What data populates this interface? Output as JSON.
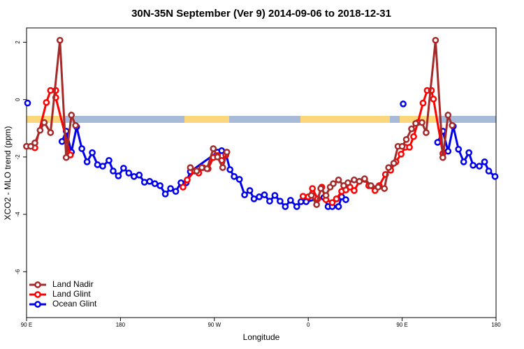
{
  "chart_data": {
    "type": "line",
    "title": "30N-35N September (Ver 9)   2014-09-06 to 2018-12-31",
    "xlabel": "Longitude",
    "ylabel": "XCO2 - MLO trend (ppm)",
    "xlim": [
      90,
      540
    ],
    "xticks": [
      {
        "value": 90,
        "label": "90 E"
      },
      180,
      {
        "value": 270,
        "label": "90 W"
      },
      {
        "value": 360,
        "label": "0"
      },
      {
        "value": 450,
        "label": "90 E"
      },
      {
        "value": 540,
        "label": "180"
      }
    ],
    "ylim": [
      -7.6,
      2.5
    ],
    "yticks": [
      2,
      0,
      -2,
      -4,
      -6
    ],
    "legend": "lower left",
    "series": [
      {
        "name": "Land Nadir",
        "color": "#a52a2a",
        "x": [
          90,
          94,
          98,
          103,
          107,
          113,
          122,
          128,
          133,
          137,
          null,
          247,
          253,
          258,
          263,
          269,
          273,
          278,
          282,
          null,
          363,
          368,
          372,
          377,
          381,
          384,
          389,
          394,
          398,
          404,
          409,
          414,
          420,
          427,
          433,
          437,
          442,
          446,
          450,
          454,
          459,
          463,
          469,
          473,
          482,
          489,
          494,
          498
        ],
        "values": [
          -1.63,
          -1.63,
          -1.51,
          -1.07,
          -0.8,
          -1.15,
          2.07,
          -2.02,
          -0.54,
          -0.9,
          null,
          -2.37,
          -2.49,
          -2.37,
          -2.41,
          -1.71,
          -2.0,
          -2.37,
          -1.83,
          null,
          -3.34,
          -3.66,
          -3.1,
          -3.34,
          -3.05,
          -2.93,
          -2.8,
          -3.0,
          -2.9,
          -2.8,
          -2.85,
          -2.76,
          -3.0,
          -3.05,
          -3.1,
          -2.37,
          -2.22,
          -1.63,
          -1.63,
          -1.39,
          -1.02,
          -0.83,
          -0.8,
          -1.15,
          2.07,
          -2.02,
          -0.54,
          -0.9
        ]
      },
      {
        "name": "Land Glint",
        "color": "#ff0000",
        "x": [
          90,
          98,
          109,
          113,
          118,
          118,
          132,
          null,
          240,
          244,
          251,
          255,
          259,
          264,
          269,
          273,
          277,
          281,
          null,
          355,
          360,
          364,
          369,
          373,
          377,
          383,
          387,
          392,
          396,
          400,
          404,
          409,
          414,
          418,
          424,
          428,
          434,
          439,
          444,
          449,
          453,
          457,
          461,
          465,
          470,
          474,
          478,
          480,
          489
        ],
        "values": [
          -1.63,
          -1.68,
          -0.1,
          0.32,
          0.32,
          0.07,
          -1.93,
          null,
          -3.05,
          -2.8,
          -2.49,
          -2.56,
          -2.37,
          -2.41,
          -2.02,
          -1.95,
          -2.12,
          -1.93,
          null,
          -3.37,
          -3.39,
          -3.1,
          -3.46,
          -3.05,
          -3.49,
          -3.59,
          -3.46,
          -3.2,
          -3.15,
          -3.05,
          -3.17,
          -2.85,
          -2.78,
          -3.0,
          -3.17,
          -3.0,
          -2.61,
          -2.46,
          -2.17,
          -1.9,
          -1.66,
          -1.66,
          -1.29,
          -0.8,
          -0.12,
          0.32,
          0.32,
          0.02,
          -1.88
        ]
      },
      {
        "name": "Ocean Glint",
        "color": "#0000ee",
        "x": [
          91,
          null,
          124,
          128,
          133,
          138,
          143,
          148,
          153,
          158,
          163,
          169,
          173,
          178,
          183,
          188,
          193,
          198,
          203,
          208,
          213,
          218,
          223,
          228,
          233,
          238,
          243,
          247,
          273,
          277,
          281,
          285,
          289,
          294,
          299,
          304,
          308,
          313,
          318,
          323,
          328,
          333,
          338,
          343,
          349,
          353,
          358,
          375,
          379,
          383,
          389,
          392,
          396,
          null,
          451,
          null,
          484,
          489,
          494,
          499,
          504,
          509,
          514,
          518,
          524,
          529,
          533,
          539
        ],
        "values": [
          -0.12,
          null,
          -1.46,
          -1.1,
          -1.83,
          -0.95,
          -1.71,
          -2.17,
          -1.85,
          -2.27,
          -2.32,
          -2.12,
          -2.49,
          -2.66,
          -2.39,
          -2.56,
          -2.68,
          -2.63,
          -2.88,
          -2.85,
          -2.93,
          -3.0,
          -3.29,
          -3.1,
          -3.2,
          -2.9,
          -2.9,
          -2.51,
          -1.83,
          -1.78,
          -1.88,
          -2.44,
          -2.68,
          -2.78,
          -3.32,
          -3.17,
          -3.46,
          -3.39,
          -3.32,
          -3.54,
          -3.34,
          -3.54,
          -3.73,
          -3.51,
          -3.73,
          -3.56,
          -3.56,
          -3.41,
          -3.73,
          -3.73,
          -3.73,
          -3.39,
          -3.49,
          null,
          -0.15,
          null,
          -1.49,
          -1.1,
          -1.8,
          -0.93,
          -1.73,
          -2.17,
          -1.85,
          -2.29,
          -2.32,
          -2.17,
          -2.49,
          -2.68
        ]
      }
    ]
  }
}
